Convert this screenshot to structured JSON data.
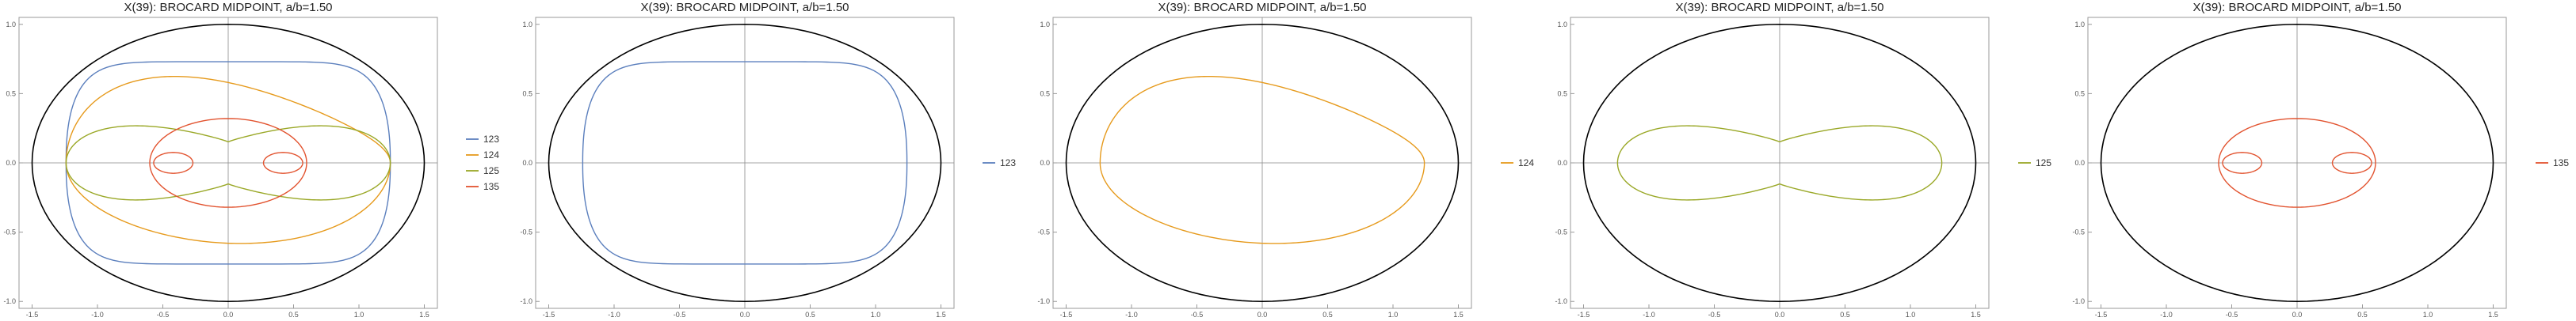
{
  "chart_data": [
    {
      "type": "line",
      "title": "X(39): BROCARD MIDPOINT, a/b=1.50",
      "xlim": [
        -1.6,
        1.6
      ],
      "ylim": [
        -1.05,
        1.05
      ],
      "xticks": [
        -1.5,
        -1.0,
        -0.5,
        0.0,
        0.5,
        1.0,
        1.5
      ],
      "xtick_labels": [
        "-1.5",
        "-1.0",
        "-0.5",
        "0.0",
        "0.5",
        "1.0",
        "1.5"
      ],
      "yticks": [
        -1.0,
        -0.5,
        0.0,
        0.5,
        1.0
      ],
      "ytick_labels": [
        "-1.0",
        "-0.5",
        "0.0",
        "0.5",
        "1.0"
      ],
      "grid": false,
      "legend": "right",
      "outer_ellipse": {
        "a": 1.5,
        "b": 1.0,
        "color": "#000000"
      },
      "series": [
        {
          "name": "123",
          "color": "#5b7fbd",
          "shape": "rounded-rect",
          "rx": 1.24,
          "ry": 0.73
        },
        {
          "name": "124",
          "color": "#e69a1c",
          "shape": "lopsided",
          "rx": 1.24,
          "ry": 0.58
        },
        {
          "name": "125",
          "color": "#9aa827",
          "shape": "peanut",
          "rx": 1.24,
          "ry": 0.44
        },
        {
          "name": "135",
          "color": "#e2532f",
          "shape": "triple-loop",
          "rx": 0.6,
          "ry": 0.32
        }
      ]
    },
    {
      "type": "line",
      "title": "X(39): BROCARD MIDPOINT, a/b=1.50",
      "xlim": [
        -1.6,
        1.6
      ],
      "ylim": [
        -1.05,
        1.05
      ],
      "xticks": [
        -1.5,
        -1.0,
        -0.5,
        0.0,
        0.5,
        1.0,
        1.5
      ],
      "xtick_labels": [
        "-1.5",
        "-1.0",
        "-0.5",
        "0.0",
        "0.5",
        "1.0",
        "1.5"
      ],
      "yticks": [
        -1.0,
        -0.5,
        0.0,
        0.5,
        1.0
      ],
      "ytick_labels": [
        "-1.0",
        "-0.5",
        "0.0",
        "0.5",
        "1.0"
      ],
      "grid": false,
      "legend": "right",
      "outer_ellipse": {
        "a": 1.5,
        "b": 1.0,
        "color": "#000000"
      },
      "series": [
        {
          "name": "123",
          "color": "#5b7fbd",
          "shape": "rounded-rect",
          "rx": 1.24,
          "ry": 0.73
        }
      ]
    },
    {
      "type": "line",
      "title": "X(39): BROCARD MIDPOINT, a/b=1.50",
      "xlim": [
        -1.6,
        1.6
      ],
      "ylim": [
        -1.05,
        1.05
      ],
      "xticks": [
        -1.5,
        -1.0,
        -0.5,
        0.0,
        0.5,
        1.0,
        1.5
      ],
      "xtick_labels": [
        "-1.5",
        "-1.0",
        "-0.5",
        "0.0",
        "0.5",
        "1.0",
        "1.5"
      ],
      "yticks": [
        -1.0,
        -0.5,
        0.0,
        0.5,
        1.0
      ],
      "ytick_labels": [
        "-1.0",
        "-0.5",
        "0.0",
        "0.5",
        "1.0"
      ],
      "grid": false,
      "legend": "right",
      "outer_ellipse": {
        "a": 1.5,
        "b": 1.0,
        "color": "#000000"
      },
      "series": [
        {
          "name": "124",
          "color": "#e69a1c",
          "shape": "lopsided",
          "rx": 1.24,
          "ry": 0.58
        }
      ]
    },
    {
      "type": "line",
      "title": "X(39): BROCARD MIDPOINT, a/b=1.50",
      "xlim": [
        -1.6,
        1.6
      ],
      "ylim": [
        -1.05,
        1.05
      ],
      "xticks": [
        -1.5,
        -1.0,
        -0.5,
        0.0,
        0.5,
        1.0,
        1.5
      ],
      "xtick_labels": [
        "-1.5",
        "-1.0",
        "-0.5",
        "0.0",
        "0.5",
        "1.0",
        "1.5"
      ],
      "yticks": [
        -1.0,
        -0.5,
        0.0,
        0.5,
        1.0
      ],
      "ytick_labels": [
        "-1.0",
        "-0.5",
        "0.0",
        "0.5",
        "1.0"
      ],
      "grid": false,
      "legend": "right",
      "outer_ellipse": {
        "a": 1.5,
        "b": 1.0,
        "color": "#000000"
      },
      "series": [
        {
          "name": "125",
          "color": "#9aa827",
          "shape": "peanut",
          "rx": 1.24,
          "ry": 0.44
        }
      ]
    },
    {
      "type": "line",
      "title": "X(39): BROCARD MIDPOINT, a/b=1.50",
      "xlim": [
        -1.6,
        1.6
      ],
      "ylim": [
        -1.05,
        1.05
      ],
      "xticks": [
        -1.5,
        -1.0,
        -0.5,
        0.0,
        0.5,
        1.0,
        1.5
      ],
      "xtick_labels": [
        "-1.5",
        "-1.0",
        "-0.5",
        "0.0",
        "0.5",
        "1.0",
        "1.5"
      ],
      "yticks": [
        -1.0,
        -0.5,
        0.0,
        0.5,
        1.0
      ],
      "ytick_labels": [
        "-1.0",
        "-0.5",
        "0.0",
        "0.5",
        "1.0"
      ],
      "grid": false,
      "legend": "right",
      "outer_ellipse": {
        "a": 1.5,
        "b": 1.0,
        "color": "#000000"
      },
      "series": [
        {
          "name": "135",
          "color": "#e2532f",
          "shape": "triple-loop",
          "rx": 0.6,
          "ry": 0.32
        }
      ]
    }
  ]
}
